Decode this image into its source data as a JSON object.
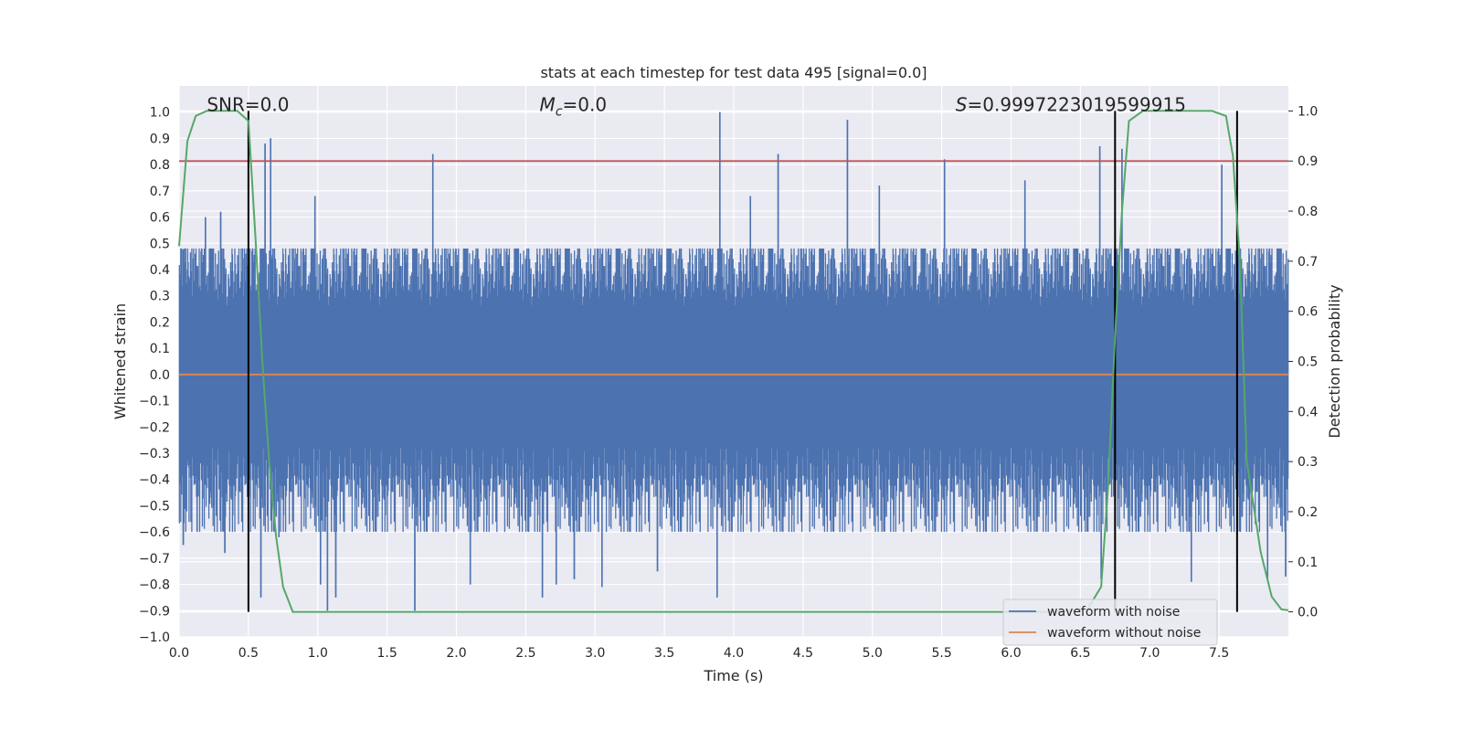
{
  "chart_data": {
    "type": "line",
    "title": "stats at each timestep for test data 495 [signal=0.0]",
    "xlabel": "Time (s)",
    "ylabel": "Whitened strain",
    "y2label": "Detection probability",
    "xlim": [
      0.0,
      8.0
    ],
    "ylim": [
      -1.0,
      1.1
    ],
    "y2lim": [
      -0.05,
      1.05
    ],
    "xticks": [
      "0.0",
      "0.5",
      "1.0",
      "1.5",
      "2.0",
      "2.5",
      "3.0",
      "3.5",
      "4.0",
      "4.5",
      "5.0",
      "5.5",
      "6.0",
      "6.5",
      "7.0",
      "7.5"
    ],
    "yticks": [
      "-1.0",
      "-0.9",
      "-0.8",
      "-0.7",
      "-0.6",
      "-0.5",
      "-0.4",
      "-0.3",
      "-0.2",
      "-0.1",
      "0.0",
      "0.1",
      "0.2",
      "0.3",
      "0.4",
      "0.5",
      "0.6",
      "0.7",
      "0.8",
      "0.9",
      "1.0"
    ],
    "y2ticks": [
      "0.0",
      "0.1",
      "0.2",
      "0.3",
      "0.4",
      "0.5",
      "0.6",
      "0.7",
      "0.8",
      "0.9",
      "1.0"
    ],
    "grid": true,
    "legend_position": "lower-right",
    "annotations": {
      "snr": "SNR=0.0",
      "mc_symbol": "M",
      "mc_sub": "c",
      "mc_value": "=0.0",
      "s_symbol": "S",
      "s_value": "=0.9997223019599915"
    },
    "series": [
      {
        "name": "waveform with noise",
        "color": "#4c72b0",
        "axis": "left",
        "envelope_note": "dense noise",
        "spikes": [
          [
            0.03,
            -0.65
          ],
          [
            0.13,
            -0.6
          ],
          [
            0.19,
            0.6
          ],
          [
            0.3,
            0.62
          ],
          [
            0.33,
            -0.68
          ],
          [
            0.5,
            -0.62
          ],
          [
            0.59,
            -0.85
          ],
          [
            0.62,
            0.88
          ],
          [
            0.66,
            0.9
          ],
          [
            0.72,
            -0.62
          ],
          [
            0.98,
            0.68
          ],
          [
            1.02,
            -0.8
          ],
          [
            1.07,
            -0.9
          ],
          [
            1.13,
            -0.85
          ],
          [
            1.7,
            -0.9
          ],
          [
            1.83,
            0.84
          ],
          [
            2.1,
            -0.8
          ],
          [
            2.62,
            -0.85
          ],
          [
            2.72,
            -0.8
          ],
          [
            2.85,
            -0.78
          ],
          [
            3.05,
            -0.81
          ],
          [
            3.45,
            -0.75
          ],
          [
            3.88,
            -0.85
          ],
          [
            3.9,
            1.0
          ],
          [
            4.12,
            0.68
          ],
          [
            4.32,
            0.84
          ],
          [
            4.82,
            0.97
          ],
          [
            5.05,
            0.72
          ],
          [
            5.52,
            0.82
          ],
          [
            6.1,
            0.74
          ],
          [
            6.64,
            0.87
          ],
          [
            6.65,
            -0.78
          ],
          [
            6.8,
            0.86
          ],
          [
            7.3,
            -0.79
          ],
          [
            7.52,
            0.8
          ],
          [
            7.85,
            -0.78
          ],
          [
            7.98,
            -0.77
          ]
        ]
      },
      {
        "name": "waveform without noise",
        "color": "#dd8452",
        "axis": "left",
        "x": [
          0.0,
          8.0
        ],
        "y": [
          0.0,
          0.0
        ]
      },
      {
        "name": "",
        "color": "#55a868",
        "axis": "right",
        "x": [
          0.0,
          0.06,
          0.12,
          0.2,
          0.3,
          0.42,
          0.5,
          0.55,
          0.6,
          0.65,
          0.7,
          0.75,
          0.82,
          0.9,
          1.5,
          3.0,
          4.5,
          5.5,
          6.0,
          6.3,
          6.55,
          6.65,
          6.7,
          6.75,
          6.8,
          6.85,
          6.95,
          7.2,
          7.45,
          7.55,
          7.6,
          7.65,
          7.7,
          7.8,
          7.88,
          7.95,
          8.0
        ],
        "y": [
          0.73,
          0.94,
          0.99,
          1.0,
          1.0,
          1.0,
          0.98,
          0.75,
          0.5,
          0.3,
          0.15,
          0.05,
          0.0,
          0.0,
          0.0,
          0.0,
          0.0,
          0.0,
          0.0,
          0.0,
          0.005,
          0.05,
          0.25,
          0.55,
          0.8,
          0.98,
          1.0,
          1.0,
          1.0,
          0.99,
          0.91,
          0.7,
          0.3,
          0.12,
          0.03,
          0.005,
          0.003
        ]
      }
    ],
    "threshold": {
      "axis": "right",
      "value": 0.9,
      "color": "#c44e52"
    },
    "vlines": [
      0.5,
      6.75,
      7.63
    ],
    "vlines_color": "#000000",
    "vlines_y2range": [
      0.0,
      1.0
    ]
  }
}
